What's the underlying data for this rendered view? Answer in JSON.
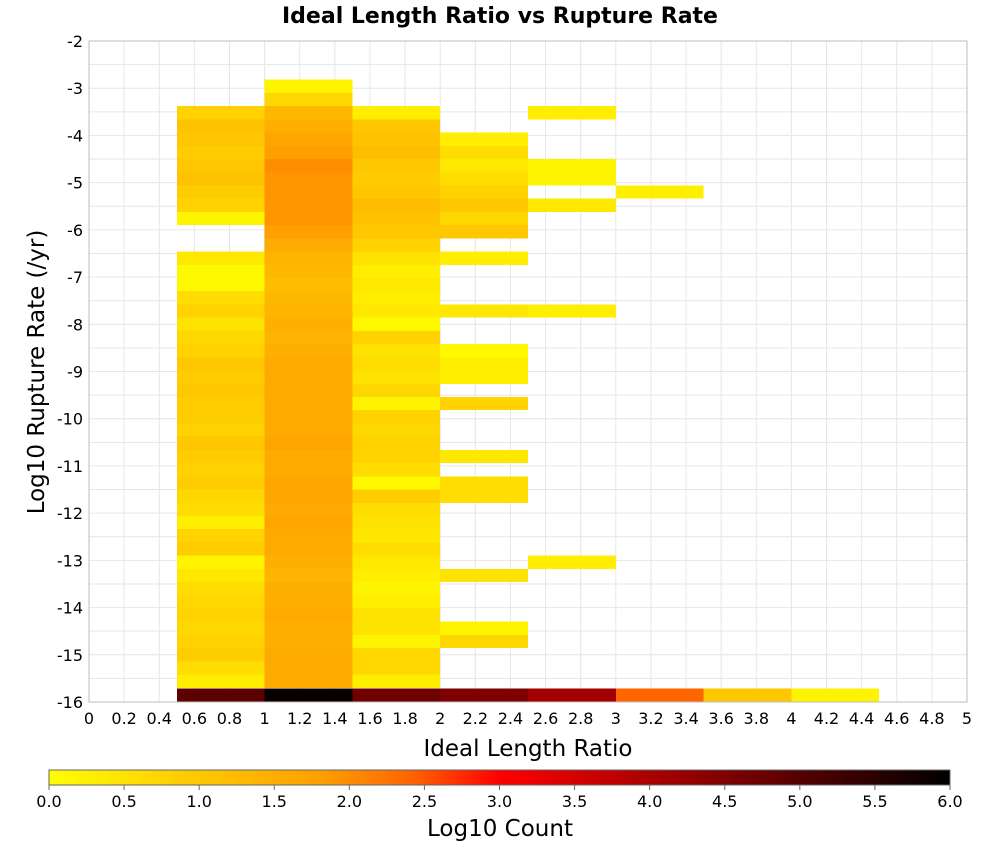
{
  "chart_data": {
    "type": "heatmap",
    "title": "Ideal Length Ratio vs Rupture Rate",
    "xlabel": "Ideal Length Ratio",
    "ylabel": "Log10 Rupture Rate (/yr)",
    "xlim": [
      0,
      5
    ],
    "ylim": [
      -16,
      -2
    ],
    "x_ticks": [
      "0",
      "0.2",
      "0.4",
      "0.6",
      "0.8",
      "1",
      "1.2",
      "1.4",
      "1.6",
      "1.8",
      "2",
      "2.2",
      "2.4",
      "2.6",
      "2.8",
      "3",
      "3.2",
      "3.4",
      "3.6",
      "3.8",
      "4",
      "4.2",
      "4.4",
      "4.6",
      "4.8",
      "5"
    ],
    "y_ticks": [
      "-2",
      "-3",
      "-4",
      "-5",
      "-6",
      "-7",
      "-8",
      "-9",
      "-10",
      "-11",
      "-12",
      "-13",
      "-14",
      "-15",
      "-16"
    ],
    "grid": true,
    "x_bin_width": 0.5,
    "y_bin_height": 0.28,
    "colorbar": {
      "label": "Log10 Count",
      "min": 0.0,
      "max": 6.0,
      "ticks": [
        "0.0",
        "0.5",
        "1.0",
        "1.5",
        "2.0",
        "2.5",
        "3.0",
        "3.5",
        "4.0",
        "4.5",
        "5.0",
        "5.5",
        "6.0"
      ],
      "colors": [
        "#ffff00",
        "#ffcc00",
        "#ff6600",
        "#ff0000",
        "#990000",
        "#000000"
      ],
      "placement": "bottom"
    },
    "cells": [
      {
        "x": 0.5,
        "y": [
          -15.99,
          -15.7,
          -15.42,
          -15.14,
          -14.86,
          -14.58,
          -14.3,
          -14.02,
          -13.74,
          -13.46,
          -13.18,
          -12.9,
          -12.62,
          -12.34,
          -12.06,
          -11.78,
          -11.5,
          -11.22,
          -10.94,
          -10.66,
          -10.38,
          -10.1,
          -9.82,
          -9.54,
          -9.26,
          -8.98,
          -8.7,
          -8.42,
          -8.14,
          -7.86,
          -7.58,
          -7.3,
          -7.02,
          -6.74,
          -5.9,
          -5.62,
          -5.34,
          -5.06,
          -4.78,
          -4.5,
          -4.22,
          -3.94,
          -3.66
        ],
        "v": [
          4.9,
          0.3,
          0.6,
          0.9,
          0.8,
          0.7,
          0.8,
          0.7,
          0.6,
          0.4,
          0.2,
          0.9,
          0.8,
          0.3,
          0.6,
          0.7,
          0.9,
          0.8,
          0.9,
          1.0,
          0.8,
          0.9,
          0.9,
          1.0,
          0.9,
          1.0,
          0.8,
          0.7,
          0.5,
          0.8,
          0.6,
          0.1,
          0.1,
          0.4,
          0.2,
          0.8,
          0.9,
          1.1,
          1.0,
          0.9,
          1.0,
          1.1,
          0.8
        ]
      },
      {
        "x": 1.0,
        "y": [
          -15.99,
          -15.7,
          -15.42,
          -15.14,
          -14.86,
          -14.58,
          -14.3,
          -14.02,
          -13.74,
          -13.46,
          -13.18,
          -12.9,
          -12.62,
          -12.34,
          -12.06,
          -11.78,
          -11.5,
          -11.22,
          -10.94,
          -10.66,
          -10.38,
          -10.1,
          -9.82,
          -9.54,
          -9.26,
          -8.98,
          -8.7,
          -8.42,
          -8.14,
          -7.86,
          -7.58,
          -7.3,
          -7.02,
          -6.74,
          -6.46,
          -6.18,
          -5.9,
          -5.62,
          -5.34,
          -5.06,
          -4.78,
          -4.5,
          -4.22,
          -3.94,
          -3.66,
          -3.38,
          -3.1
        ],
        "v": [
          5.9,
          1.6,
          1.6,
          1.6,
          1.5,
          1.5,
          1.6,
          1.5,
          1.5,
          1.4,
          1.5,
          1.6,
          1.6,
          1.7,
          1.6,
          1.7,
          1.7,
          1.6,
          1.6,
          1.7,
          1.6,
          1.6,
          1.6,
          1.6,
          1.6,
          1.6,
          1.5,
          1.4,
          1.5,
          1.4,
          1.3,
          1.2,
          1.3,
          1.4,
          1.6,
          1.8,
          1.9,
          1.9,
          1.9,
          1.9,
          2.0,
          1.8,
          1.7,
          1.5,
          1.3,
          0.7,
          0.2
        ]
      },
      {
        "x": 1.5,
        "y": [
          -15.99,
          -15.7,
          -15.42,
          -15.14,
          -14.86,
          -14.58,
          -14.3,
          -14.02,
          -13.74,
          -13.46,
          -13.18,
          -12.9,
          -12.62,
          -12.34,
          -12.06,
          -11.78,
          -11.5,
          -11.22,
          -10.94,
          -10.66,
          -10.38,
          -10.1,
          -9.82,
          -9.54,
          -9.26,
          -8.98,
          -8.7,
          -8.42,
          -8.14,
          -7.86,
          -7.58,
          -7.3,
          -7.02,
          -6.74,
          -6.46,
          -6.18,
          -5.9,
          -5.62,
          -5.34,
          -5.06,
          -4.78,
          -4.5,
          -4.22,
          -3.94,
          -3.66
        ],
        "v": [
          4.7,
          0.3,
          0.7,
          0.7,
          0.2,
          0.5,
          0.5,
          0.3,
          0.2,
          0.3,
          0.4,
          0.6,
          0.4,
          0.5,
          0.6,
          0.9,
          0.1,
          0.6,
          0.8,
          0.8,
          0.7,
          0.8,
          0.2,
          0.7,
          0.5,
          0.6,
          0.5,
          0.8,
          0.1,
          0.4,
          0.3,
          0.4,
          0.3,
          0.5,
          0.8,
          1.0,
          1.1,
          1.2,
          1.0,
          0.9,
          1.0,
          1.2,
          1.1,
          1.0,
          0.3
        ]
      },
      {
        "x": 2.0,
        "y": [
          -15.99,
          -14.86,
          -14.58,
          -13.46,
          -11.78,
          -11.5,
          -10.94,
          -9.82,
          -9.26,
          -8.98,
          -8.7,
          -7.86,
          -6.74,
          -6.18,
          -5.9,
          -5.62,
          -5.34,
          -5.06,
          -4.78,
          -4.5,
          -4.22
        ],
        "v": [
          4.5,
          0.7,
          0.2,
          0.5,
          0.6,
          0.6,
          0.4,
          0.8,
          0.3,
          0.3,
          0.1,
          0.4,
          0.3,
          1.0,
          0.7,
          1.0,
          0.8,
          0.6,
          0.4,
          0.6,
          0.3
        ]
      },
      {
        "x": 2.5,
        "y": [
          -15.99,
          -13.18,
          -7.86,
          -5.62,
          -5.06,
          -4.78,
          -3.66
        ],
        "v": [
          4.1,
          0.3,
          0.3,
          0.4,
          0.2,
          0.2,
          0.3
        ]
      },
      {
        "x": 3.0,
        "y": [
          -15.99,
          -5.34
        ],
        "v": [
          2.4,
          0.3
        ]
      },
      {
        "x": 3.5,
        "y": [
          -15.99
        ],
        "v": [
          1.0
        ]
      },
      {
        "x": 4.0,
        "y": [
          -15.99
        ],
        "v": [
          0.2
        ]
      }
    ]
  }
}
